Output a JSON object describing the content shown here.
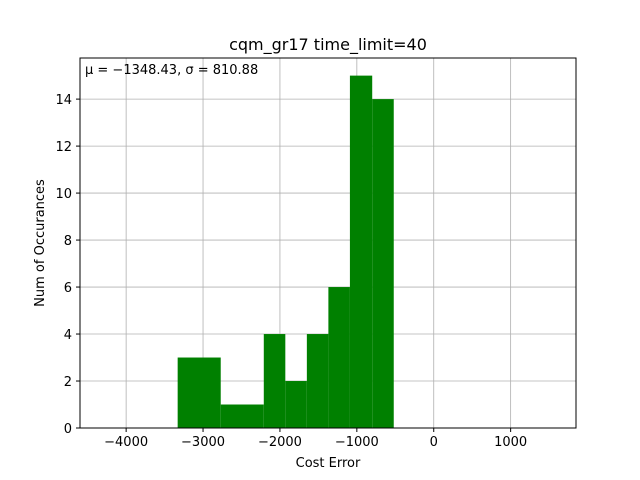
{
  "chart_data": {
    "type": "bar",
    "title": "cqm_gr17 time_limit=40",
    "xlabel": "Cost Error",
    "ylabel": "Num of Occurances",
    "annotation": "μ = −1348.43,  σ = 810.88",
    "xlim": [
      -4600,
      1850
    ],
    "ylim": [
      0,
      15.75
    ],
    "xticks": [
      -4000,
      -3000,
      -2000,
      -1000,
      0,
      1000
    ],
    "xtick_labels": [
      "−4000",
      "−3000",
      "−2000",
      "−1000",
      "0",
      "1000"
    ],
    "yticks": [
      0,
      2,
      4,
      6,
      8,
      10,
      12,
      14
    ],
    "ytick_labels": [
      "0",
      "2",
      "4",
      "6",
      "8",
      "10",
      "12",
      "14"
    ],
    "grid": true,
    "bar_color": "#008000",
    "bins": [
      {
        "x0": -3330,
        "x1": -2770,
        "count": 3
      },
      {
        "x0": -2770,
        "x1": -2210,
        "count": 1
      },
      {
        "x0": -2210,
        "x1": -1930,
        "count": 4
      },
      {
        "x0": -1930,
        "x1": -1650,
        "count": 2
      },
      {
        "x0": -1650,
        "x1": -1370,
        "count": 4
      },
      {
        "x0": -1370,
        "x1": -1090,
        "count": 6
      },
      {
        "x0": -1090,
        "x1": -800,
        "count": 15
      },
      {
        "x0": -800,
        "x1": -520,
        "count": 14
      }
    ]
  }
}
